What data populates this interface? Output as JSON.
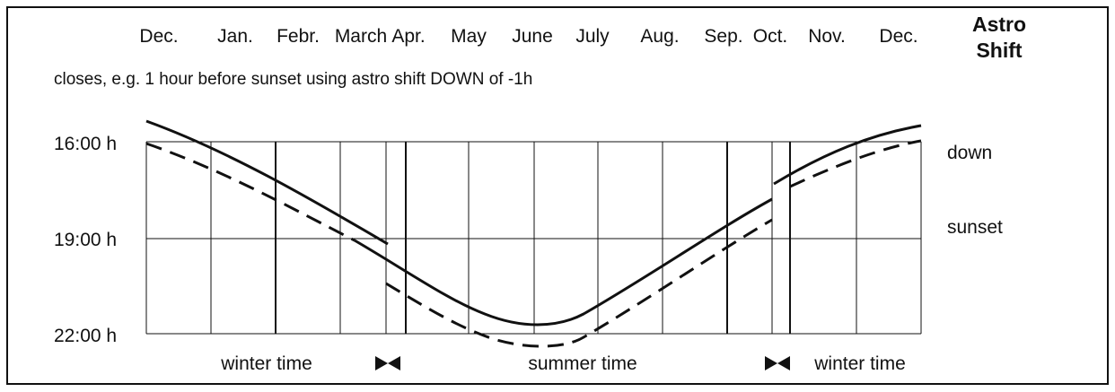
{
  "months": [
    "Dec.",
    "Jan.",
    "Febr.",
    "March",
    "Apr.",
    "May",
    "June",
    "July",
    "Aug.",
    "Sep.",
    "Oct.",
    "Nov.",
    "Dec."
  ],
  "heading": [
    "Astro",
    "Shift"
  ],
  "caption": "closes, e.g. 1 hour before sunset using astro shift DOWN of -1h",
  "times": [
    "16:00 h",
    "19:00 h",
    "22:00 h"
  ],
  "curves": [
    "down",
    "sunset"
  ],
  "periods": [
    "winter time",
    "summer time",
    "winter time"
  ]
}
